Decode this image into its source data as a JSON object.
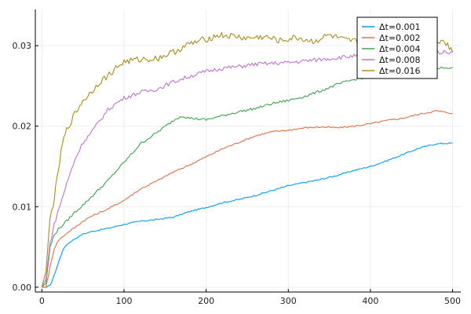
{
  "chart_data": {
    "type": "line",
    "title": "",
    "xlabel": "",
    "ylabel": "",
    "xlim": [
      -8,
      510
    ],
    "ylim": [
      -0.0006,
      0.0345
    ],
    "xticks": [
      0,
      100,
      200,
      300,
      400,
      500
    ],
    "xtick_labels": [
      "0",
      "100",
      "200",
      "300",
      "400",
      "500"
    ],
    "yticks": [
      0.0,
      0.01,
      0.02,
      0.03
    ],
    "ytick_labels": [
      "0.00",
      "0.01",
      "0.02",
      "0.03"
    ],
    "grid": true,
    "legend_position": "top-right",
    "series": [
      {
        "name": "Δt=0.001",
        "color": "#009af9",
        "points": [
          [
            0,
            0
          ],
          [
            5,
            0
          ],
          [
            10,
            0.0002
          ],
          [
            15,
            0.0015
          ],
          [
            20,
            0.003
          ],
          [
            25,
            0.0045
          ],
          [
            30,
            0.0053
          ],
          [
            40,
            0.006
          ],
          [
            50,
            0.0066
          ],
          [
            60,
            0.0069
          ],
          [
            80,
            0.0073
          ],
          [
            100,
            0.0078
          ],
          [
            120,
            0.0082
          ],
          [
            140,
            0.0084
          ],
          [
            160,
            0.0087
          ],
          [
            180,
            0.0094
          ],
          [
            200,
            0.0099
          ],
          [
            220,
            0.0105
          ],
          [
            240,
            0.0109
          ],
          [
            260,
            0.0114
          ],
          [
            280,
            0.012
          ],
          [
            300,
            0.0126
          ],
          [
            320,
            0.013
          ],
          [
            340,
            0.0134
          ],
          [
            360,
            0.0139
          ],
          [
            380,
            0.0145
          ],
          [
            400,
            0.015
          ],
          [
            420,
            0.0157
          ],
          [
            440,
            0.0165
          ],
          [
            460,
            0.0173
          ],
          [
            480,
            0.0178
          ],
          [
            500,
            0.0179
          ]
        ]
      },
      {
        "name": "Δt=0.002",
        "color": "#e26f46",
        "points": [
          [
            0,
            0
          ],
          [
            5,
            0
          ],
          [
            10,
            0.0025
          ],
          [
            15,
            0.0048
          ],
          [
            20,
            0.0058
          ],
          [
            30,
            0.0067
          ],
          [
            40,
            0.0074
          ],
          [
            50,
            0.0082
          ],
          [
            60,
            0.0088
          ],
          [
            80,
            0.0097
          ],
          [
            100,
            0.0108
          ],
          [
            120,
            0.0122
          ],
          [
            140,
            0.0132
          ],
          [
            160,
            0.0143
          ],
          [
            180,
            0.0152
          ],
          [
            200,
            0.0162
          ],
          [
            220,
            0.0172
          ],
          [
            240,
            0.018
          ],
          [
            260,
            0.0188
          ],
          [
            280,
            0.0193
          ],
          [
            300,
            0.0195
          ],
          [
            320,
            0.0198
          ],
          [
            340,
            0.0199
          ],
          [
            360,
            0.0198
          ],
          [
            380,
            0.02
          ],
          [
            400,
            0.0203
          ],
          [
            420,
            0.0207
          ],
          [
            440,
            0.021
          ],
          [
            460,
            0.0215
          ],
          [
            480,
            0.0219
          ],
          [
            500,
            0.0216
          ]
        ]
      },
      {
        "name": "Δt=0.004",
        "color": "#3da44d",
        "points": [
          [
            0,
            0
          ],
          [
            5,
            0.0005
          ],
          [
            10,
            0.005
          ],
          [
            15,
            0.0065
          ],
          [
            20,
            0.0072
          ],
          [
            30,
            0.0082
          ],
          [
            40,
            0.0093
          ],
          [
            50,
            0.0102
          ],
          [
            60,
            0.0112
          ],
          [
            80,
            0.0132
          ],
          [
            100,
            0.0155
          ],
          [
            120,
            0.0178
          ],
          [
            140,
            0.0192
          ],
          [
            160,
            0.0207
          ],
          [
            170,
            0.0213
          ],
          [
            180,
            0.021
          ],
          [
            200,
            0.0208
          ],
          [
            220,
            0.0213
          ],
          [
            240,
            0.0218
          ],
          [
            260,
            0.0222
          ],
          [
            280,
            0.0228
          ],
          [
            300,
            0.0232
          ],
          [
            320,
            0.0237
          ],
          [
            340,
            0.0244
          ],
          [
            360,
            0.0252
          ],
          [
            380,
            0.0258
          ],
          [
            400,
            0.0262
          ],
          [
            420,
            0.0265
          ],
          [
            440,
            0.0268
          ],
          [
            460,
            0.027
          ],
          [
            480,
            0.0272
          ],
          [
            500,
            0.0273
          ]
        ]
      },
      {
        "name": "Δt=0.008",
        "color": "#c271d2",
        "points": [
          [
            0,
            0
          ],
          [
            5,
            0.001
          ],
          [
            10,
            0.0055
          ],
          [
            15,
            0.0078
          ],
          [
            20,
            0.0095
          ],
          [
            30,
            0.0128
          ],
          [
            40,
            0.0158
          ],
          [
            50,
            0.018
          ],
          [
            60,
            0.0192
          ],
          [
            70,
            0.0206
          ],
          [
            80,
            0.022
          ],
          [
            90,
            0.0228
          ],
          [
            100,
            0.0235
          ],
          [
            120,
            0.0242
          ],
          [
            140,
            0.0246
          ],
          [
            160,
            0.0255
          ],
          [
            180,
            0.0262
          ],
          [
            200,
            0.0268
          ],
          [
            220,
            0.0272
          ],
          [
            240,
            0.0274
          ],
          [
            260,
            0.0277
          ],
          [
            280,
            0.0278
          ],
          [
            300,
            0.0279
          ],
          [
            320,
            0.0281
          ],
          [
            340,
            0.0283
          ],
          [
            360,
            0.0285
          ],
          [
            380,
            0.0287
          ],
          [
            400,
            0.0289
          ],
          [
            420,
            0.029
          ],
          [
            440,
            0.0291
          ],
          [
            460,
            0.0291
          ],
          [
            480,
            0.0292
          ],
          [
            500,
            0.0292
          ]
        ]
      },
      {
        "name": "Δt=0.016",
        "color": "#ac8d18",
        "points": [
          [
            0,
            0
          ],
          [
            5,
            0.002
          ],
          [
            10,
            0.0085
          ],
          [
            15,
            0.011
          ],
          [
            20,
            0.0145
          ],
          [
            25,
            0.0178
          ],
          [
            30,
            0.0195
          ],
          [
            40,
            0.0215
          ],
          [
            50,
            0.0232
          ],
          [
            60,
            0.0242
          ],
          [
            70,
            0.0255
          ],
          [
            80,
            0.0262
          ],
          [
            90,
            0.0272
          ],
          [
            100,
            0.028
          ],
          [
            120,
            0.0283
          ],
          [
            140,
            0.0284
          ],
          [
            160,
            0.0292
          ],
          [
            180,
            0.0302
          ],
          [
            200,
            0.0308
          ],
          [
            215,
            0.0313
          ],
          [
            230,
            0.0312
          ],
          [
            250,
            0.0309
          ],
          [
            270,
            0.0311
          ],
          [
            290,
            0.0306
          ],
          [
            310,
            0.031
          ],
          [
            330,
            0.0305
          ],
          [
            350,
            0.0313
          ],
          [
            370,
            0.0306
          ],
          [
            390,
            0.0305
          ],
          [
            410,
            0.0297
          ],
          [
            430,
            0.0303
          ],
          [
            450,
            0.0296
          ],
          [
            470,
            0.0305
          ],
          [
            490,
            0.0307
          ],
          [
            500,
            0.0292
          ]
        ]
      }
    ]
  }
}
